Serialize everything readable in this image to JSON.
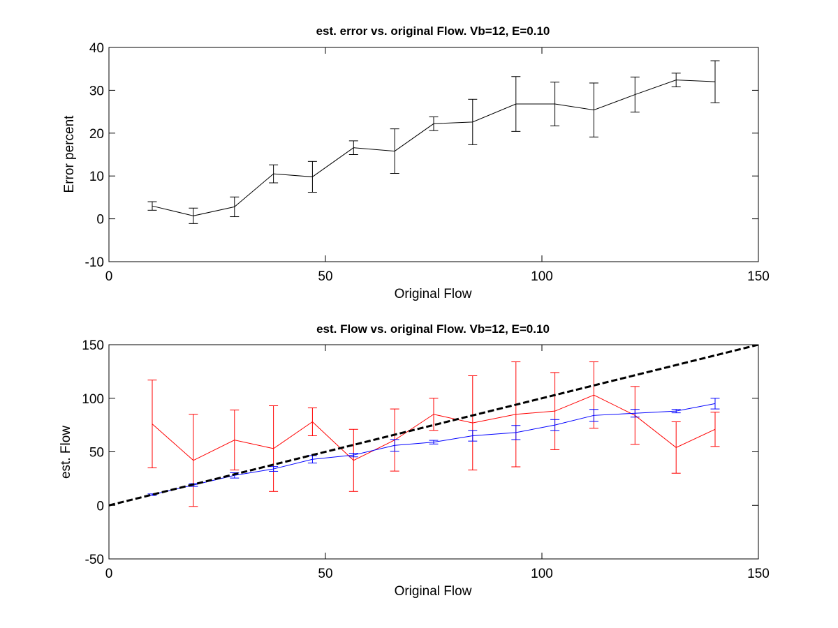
{
  "chart_data": [
    {
      "type": "line",
      "title": "est. error vs. original Flow. Vb=12, E=0.10",
      "xlabel": "Original Flow",
      "ylabel": "Error percent",
      "xlim": [
        0,
        150
      ],
      "ylim": [
        -10,
        40
      ],
      "xticks": [
        0,
        50,
        100,
        150
      ],
      "yticks": [
        -10,
        0,
        10,
        20,
        30,
        40
      ],
      "xtick_labels": [
        "0",
        "50",
        "100",
        "150"
      ],
      "ytick_labels": [
        "-10",
        "0",
        "10",
        "20",
        "30",
        "40"
      ],
      "grid": false,
      "series": [
        {
          "color": "#000000",
          "x": [
            10,
            19.5,
            29,
            38,
            47,
            56.5,
            66,
            75,
            84,
            94,
            103,
            112,
            121.5,
            131,
            140
          ],
          "y": [
            3,
            0.7,
            2.8,
            10.5,
            9.8,
            16.6,
            15.8,
            22.2,
            22.6,
            26.8,
            26.8,
            25.4,
            29,
            32.4,
            32
          ],
          "err": [
            1,
            1.8,
            2.3,
            2.1,
            3.6,
            1.6,
            5.2,
            1.6,
            5.3,
            6.4,
            5.1,
            6.3,
            4.1,
            1.6,
            4.9
          ]
        }
      ]
    },
    {
      "type": "line",
      "title": "est. Flow vs. original Flow. Vb=12, E=0.10",
      "xlabel": "Original Flow",
      "ylabel": "est. Flow",
      "xlim": [
        0,
        150
      ],
      "ylim": [
        -50,
        150
      ],
      "xticks": [
        0,
        50,
        100,
        150
      ],
      "yticks": [
        -50,
        0,
        50,
        100,
        150
      ],
      "xtick_labels": [
        "0",
        "50",
        "100",
        "150"
      ],
      "ytick_labels": [
        "-50",
        "0",
        "50",
        "100",
        "150"
      ],
      "grid": false,
      "series": [
        {
          "color": "#ff0000",
          "x": [
            10,
            19.5,
            29,
            38,
            47,
            56.5,
            66,
            75,
            84,
            94,
            103,
            112,
            121.5,
            131,
            140
          ],
          "y": [
            76,
            42,
            61,
            53,
            78,
            42,
            61,
            85,
            77,
            85,
            88,
            103,
            84,
            54,
            71
          ],
          "err": [
            41,
            43,
            28,
            40,
            13,
            29,
            29,
            15,
            44,
            49,
            36,
            31,
            27,
            24,
            16
          ]
        },
        {
          "color": "#0000ff",
          "x": [
            10,
            19.5,
            29,
            38,
            47,
            56.5,
            66,
            75,
            84,
            94,
            103,
            112,
            121.5,
            131,
            140
          ],
          "y": [
            10,
            19,
            28,
            34,
            43,
            47,
            56,
            59,
            65,
            68,
            75,
            84,
            86,
            88,
            95
          ],
          "err": [
            0.7,
            1.3,
            2.5,
            2.2,
            3.5,
            1.7,
            5.5,
            1.7,
            5,
            6.6,
            5.1,
            5.6,
            3.6,
            1.6,
            5
          ]
        },
        {
          "color": "#000000",
          "style": "dashed",
          "x": [
            0,
            150
          ],
          "y": [
            0,
            150
          ]
        }
      ]
    }
  ]
}
